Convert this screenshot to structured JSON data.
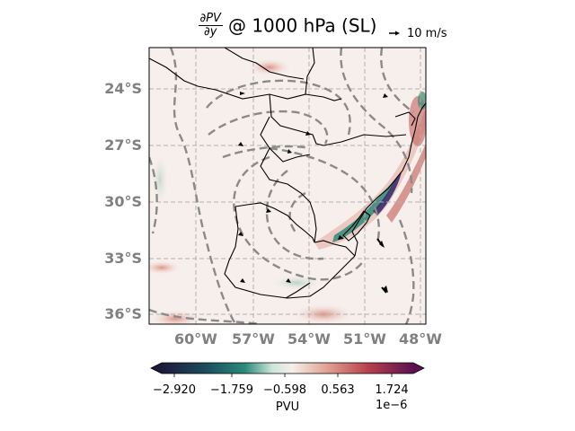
{
  "title": {
    "numerator": "∂PV",
    "denominator": "∂y",
    "text": "@ 1000 hPa (SL)"
  },
  "quiver_key": {
    "label": "10 m/s"
  },
  "map": {
    "lat_labels": [
      "24°S",
      "27°S",
      "30°S",
      "33°S",
      "36°S"
    ],
    "lon_labels": [
      "60°W",
      "57°W",
      "54°W",
      "51°W",
      "48°W"
    ],
    "extent": {
      "lon": [
        -62,
        -47.5
      ],
      "lat": [
        -36.5,
        -22.5
      ]
    },
    "gridlines": true
  },
  "colorbar": {
    "ticks": [
      "−2.920",
      "−1.759",
      "−0.598",
      "0.563",
      "1.724"
    ],
    "unit": "PVU",
    "exponent": "1e−6",
    "colors": [
      "#1c1a3a",
      "#1b4e5e",
      "#2a8a7a",
      "#cde6d8",
      "#f6efea",
      "#e0a090",
      "#b8404d",
      "#5a1250"
    ]
  }
}
